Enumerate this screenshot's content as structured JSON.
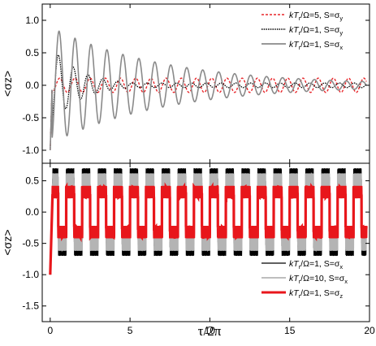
{
  "chart_data": [
    {
      "type": "line",
      "panel": "top",
      "ylabel": "<σz>",
      "xlim": [
        -0.5,
        20
      ],
      "ylim": [
        -1.2,
        1.25
      ],
      "xticks": [
        0,
        5,
        10,
        15,
        20
      ],
      "yticks": [
        {
          "v": 1.0,
          "label": "1.0"
        },
        {
          "v": 0.5,
          "label": "0.5"
        },
        {
          "v": 0.0,
          "label": "0.0"
        },
        {
          "v": -0.5,
          "label": "-0.5"
        },
        {
          "v": -1.0,
          "label": "-1.0"
        }
      ],
      "legend_position": "top-right",
      "grid": false,
      "series": [
        {
          "name": "kTr/Ω=5, S=σy",
          "legend_main": "kT",
          "legend_sub": "r",
          "legend_rest": "/Ω=5,  S=σ",
          "legend_s": "y",
          "color": "#e8262a",
          "dash": "3,2",
          "width": 1.4,
          "model": {
            "type": "osc",
            "mean": 0.0,
            "amp": 0.11,
            "decay": 0,
            "freq": 1.05,
            "start": -1.0
          }
        },
        {
          "name": "kTr/Ω=1, S=σy",
          "legend_main": "kT",
          "legend_sub": "r",
          "legend_rest": "/Ω=1,  S=σ",
          "legend_s": "y",
          "color": "#000000",
          "dash": "1.5,1.2",
          "width": 1.3,
          "model": {
            "type": "osc",
            "mean": 0.0,
            "amp": 0.62,
            "decay": 0.55,
            "freq": 1.08,
            "start": -1.0,
            "floor": 0.035
          }
        },
        {
          "name": "kTr/Ω=1, S=σx",
          "legend_main": "kT",
          "legend_sub": "r",
          "legend_rest": "/Ω=1,  S=σ",
          "legend_s": "x",
          "color": "#8a8a8a",
          "dash": "",
          "width": 1.6,
          "model": {
            "type": "osc",
            "mean": 0.0,
            "amp": 0.9,
            "decay": 0.14,
            "freq": 1.0,
            "start": -1.0,
            "floor": 0.03
          }
        }
      ]
    },
    {
      "type": "area",
      "panel": "bottom",
      "xlabel": "τ/2π",
      "ylabel": "<σz>",
      "xlim": [
        -0.5,
        20
      ],
      "ylim": [
        -1.75,
        0.78
      ],
      "xticks": [
        0,
        5,
        10,
        15,
        20
      ],
      "yticks": [
        {
          "v": 0.5,
          "label": "0.5"
        },
        {
          "v": 0.0,
          "label": "0.0"
        },
        {
          "v": -0.5,
          "label": "-0.5"
        },
        {
          "v": -1.0,
          "label": "-1.0"
        },
        {
          "v": -1.5,
          "label": "-1.5"
        }
      ],
      "legend_position": "bottom-right",
      "grid": false,
      "series": [
        {
          "name": "kTr/Ω=1, S=σx",
          "legend_main": "kT",
          "legend_sub": "r",
          "legend_rest": "/Ω=1,  S=σ",
          "legend_s": "x",
          "color": "#000000",
          "width": 1.0,
          "model": {
            "type": "band",
            "period": 1.0,
            "hiTop": 0.7,
            "hiBot": 0.45,
            "loTop": -0.45,
            "loBot": -0.7
          }
        },
        {
          "name": "kTr/Ω=10, S=σx",
          "legend_main": "kT",
          "legend_sub": "r",
          "legend_rest": "/Ω=10,  S=σ",
          "legend_s": "x",
          "color": "#b4b4b4",
          "width": 1.6,
          "model": {
            "type": "band",
            "period": 1.0,
            "hiTop": 0.62,
            "hiBot": 0.36,
            "loTop": -0.36,
            "loBot": -0.62
          }
        },
        {
          "name": "kTr/Ω=1, S=σz",
          "legend_main": "kT",
          "legend_sub": "r",
          "legend_rest": "/Ω=1,  S=σ",
          "legend_s": "z",
          "color": "#e8161b",
          "width": 3.2,
          "model": {
            "type": "band",
            "period": 1.0,
            "hiTop": 0.42,
            "hiBot": 0.22,
            "loTop": -0.22,
            "loBot": -0.42
          }
        }
      ]
    }
  ]
}
